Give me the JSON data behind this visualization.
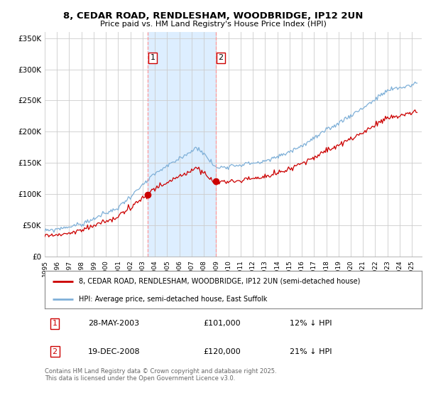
{
  "title": "8, CEDAR ROAD, RENDLESHAM, WOODBRIDGE, IP12 2UN",
  "subtitle": "Price paid vs. HM Land Registry's House Price Index (HPI)",
  "property_label": "8, CEDAR ROAD, RENDLESHAM, WOODBRIDGE, IP12 2UN (semi-detached house)",
  "hpi_label": "HPI: Average price, semi-detached house, East Suffolk",
  "sale1_date_label": "28-MAY-2003",
  "sale1_price_label": "£101,000",
  "sale1_pct_label": "12% ↓ HPI",
  "sale2_date_label": "19-DEC-2008",
  "sale2_price_label": "£120,000",
  "sale2_pct_label": "21% ↓ HPI",
  "footnote": "Contains HM Land Registry data © Crown copyright and database right 2025.\nThis data is licensed under the Open Government Licence v3.0.",
  "background_color": "#ffffff",
  "plot_bg_color": "#ffffff",
  "grid_color": "#cccccc",
  "line_color_property": "#cc0000",
  "line_color_hpi": "#7fb0d8",
  "shade_color": "#ddeeff",
  "vline_color": "#ff9999",
  "marker_color": "#cc0000",
  "sale1_year": 2003.41,
  "sale2_year": 2008.97,
  "sale1_price": 101000,
  "sale2_price": 120000,
  "ylim": [
    0,
    360000
  ],
  "xlim_start": 1995.0,
  "xlim_end": 2025.8,
  "yticks": [
    0,
    50000,
    100000,
    150000,
    200000,
    250000,
    300000,
    350000
  ]
}
